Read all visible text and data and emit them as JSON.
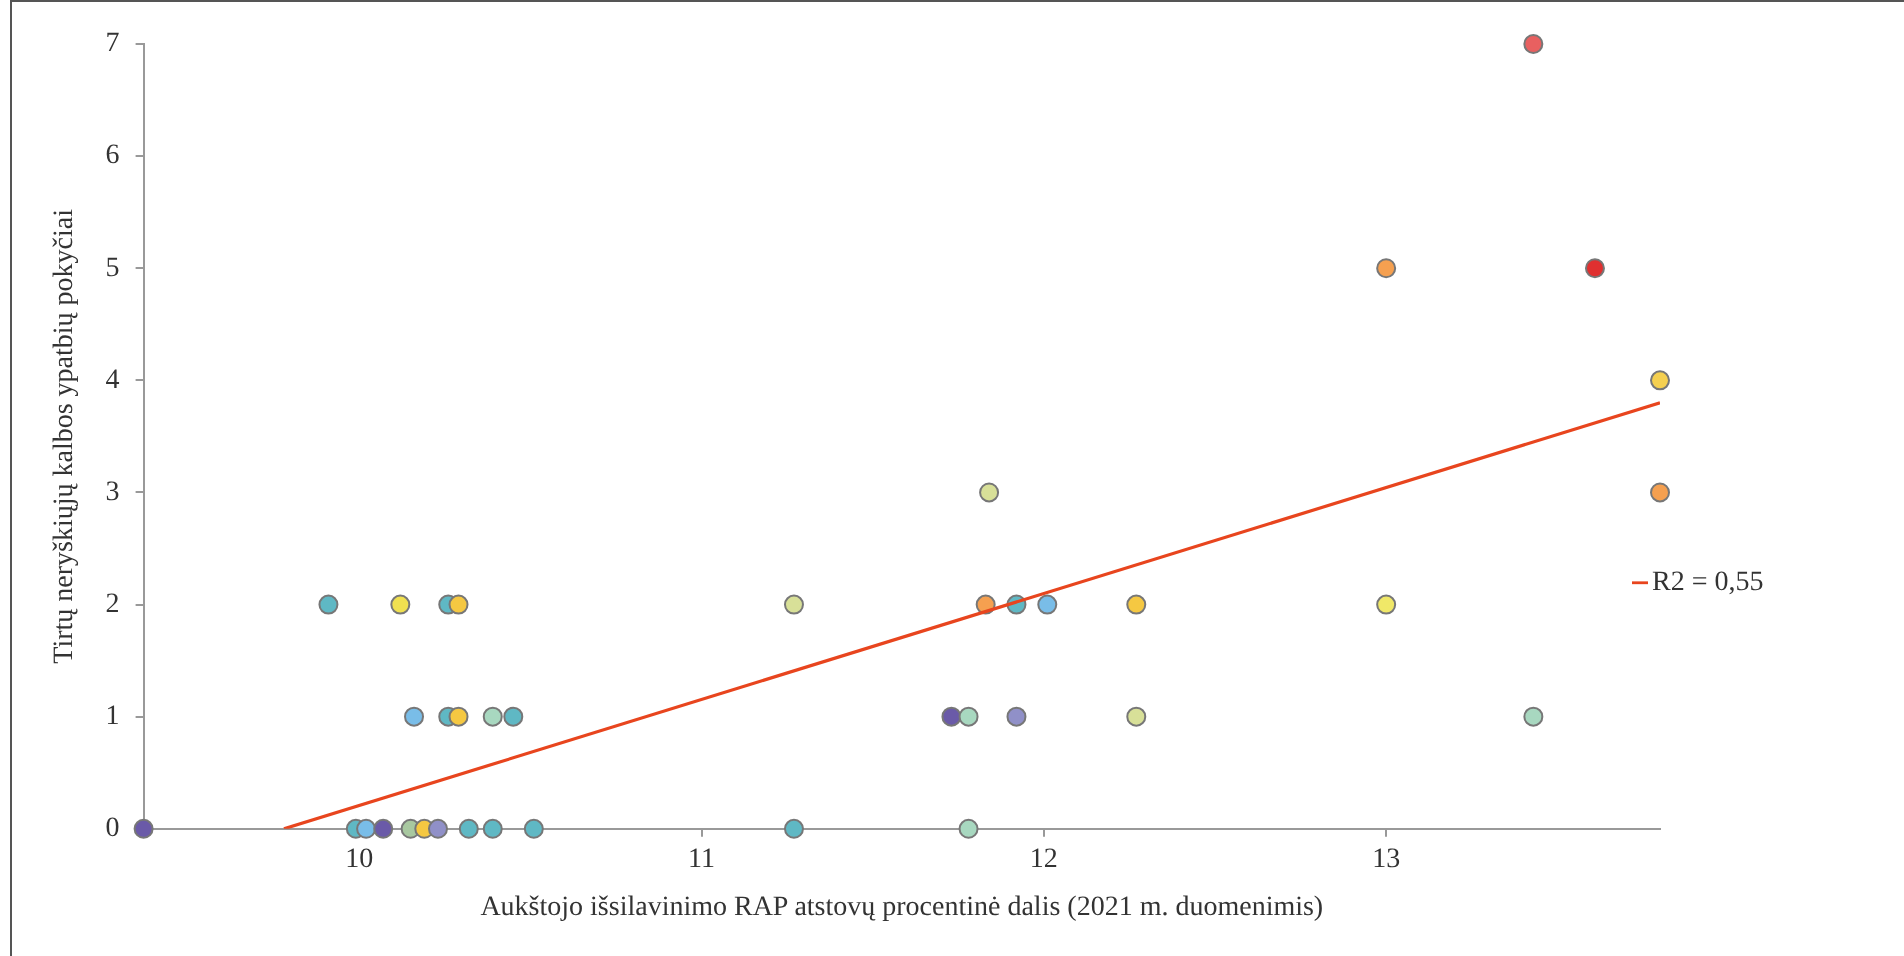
{
  "chart_data": {
    "type": "scatter",
    "xlabel": "Aukštojo išsilavinimo RAP atstovų procentinė dalis (2021 m. duomenimis)",
    "ylabel": "Tirtų neryškiųjų kalbos ypatbių pokyčiai",
    "xlim": [
      9.37,
      13.8
    ],
    "xticks": [
      10,
      11,
      12,
      13
    ],
    "ylim": [
      0,
      7
    ],
    "yticks": [
      0,
      1,
      2,
      3,
      4,
      5,
      6,
      7
    ],
    "grid": false,
    "marker": "circle",
    "series": [
      {
        "x": [
          9.37,
          9.99,
          10.02,
          10.07,
          10.15,
          10.19,
          10.23,
          10.32,
          10.39,
          10.51,
          11.27,
          11.78,
          10.16,
          10.26,
          10.29,
          10.39,
          10.45,
          11.73,
          11.78,
          11.92,
          12.27,
          13.43,
          9.91,
          10.12,
          10.26,
          10.29,
          11.27,
          11.83,
          11.92,
          12.01,
          12.27,
          13.0,
          11.84,
          13.8,
          13.8,
          13.0,
          13.61,
          13.43
        ],
        "values": [
          0,
          0,
          0,
          0,
          0,
          0,
          0,
          0,
          0,
          0,
          0,
          0,
          1,
          1,
          1,
          1,
          1,
          1,
          1,
          1,
          1,
          1,
          2,
          2,
          2,
          2,
          2,
          2,
          2,
          2,
          2,
          2,
          3,
          3,
          4,
          5,
          5,
          7
        ],
        "colors": [
          "#6a5aa8",
          "#5fb8c4",
          "#79bde8",
          "#6a5aa8",
          "#a8c8a0",
          "#f5c842",
          "#9090c8",
          "#5fb8c4",
          "#5fb8c4",
          "#5fb8c4",
          "#5fb8c4",
          "#a8d8c0",
          "#79bde8",
          "#5fb8c4",
          "#f5c842",
          "#a8d8c0",
          "#5fb8c4",
          "#6a5aa8",
          "#a8d8c0",
          "#9090c8",
          "#d8e098",
          "#a8d8c0",
          "#5fb8c4",
          "#f0e050",
          "#5fb8c4",
          "#f5c842",
          "#d8e098",
          "#f5a050",
          "#5fb8c4",
          "#79bde8",
          "#f5c842",
          "#f0e868",
          "#d8e098",
          "#f5a050",
          "#f5d050",
          "#f5a050",
          "#e03030",
          "#e86060"
        ]
      },
      {
        "type": "line",
        "name": "R2 = 0,55",
        "color": "#e8451e",
        "x": [
          9.78,
          13.8
        ],
        "values": [
          0,
          3.8
        ],
        "marker": "none"
      }
    ]
  }
}
